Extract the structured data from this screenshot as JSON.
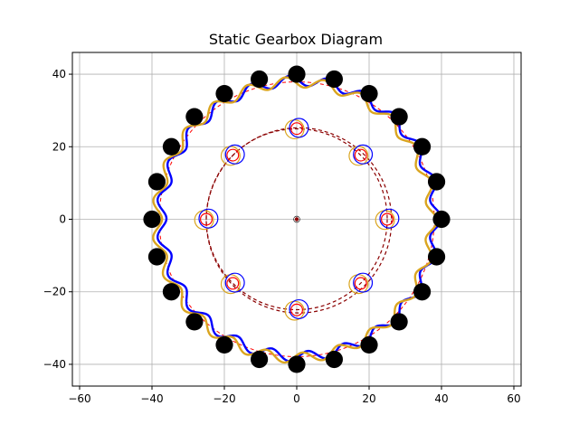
{
  "chart_data": {
    "type": "scatter",
    "title": "Static Gearbox Diagram",
    "xlabel": "",
    "ylabel": "",
    "xlim": [
      -62,
      62
    ],
    "ylim": [
      -46,
      46
    ],
    "grid": true,
    "legend": "none",
    "x_ticks": [
      -60,
      -40,
      -20,
      0,
      20,
      40,
      60
    ],
    "y_ticks": [
      -40,
      -20,
      0,
      20,
      40
    ],
    "x_tick_labels": [
      "−60",
      "−40",
      "−20",
      "0",
      "20",
      "40",
      "60"
    ],
    "y_tick_labels": [
      "−40",
      "−20",
      "0",
      "20",
      "40"
    ],
    "colors": {
      "blue": "#0000ff",
      "gold": "#daa520",
      "red": "#ff0000",
      "darkred": "#8b0000",
      "black": "#000000",
      "grid": "#b0b0b0"
    },
    "ring_rollers": {
      "count": 24,
      "radius_center": 40,
      "roller_radius": 2.4,
      "phase_deg": 0,
      "note_positions": "evenly spaced around ring",
      "x": [
        40,
        38.64,
        34.64,
        28.28,
        20,
        10.35,
        0,
        -10.35,
        -20,
        -28.28,
        -34.64,
        -38.64,
        -40,
        -38.64,
        -34.64,
        -28.28,
        -20,
        -10.35,
        0,
        10.35,
        20,
        28.28,
        34.64,
        38.64
      ],
      "y": [
        0,
        10.35,
        20,
        28.28,
        34.64,
        38.64,
        40,
        38.64,
        34.64,
        28.28,
        20,
        10.35,
        0,
        -10.35,
        -20,
        -28.28,
        -34.64,
        -38.64,
        -40,
        -38.64,
        -34.64,
        -28.28,
        -20,
        -10.35
      ]
    },
    "outer_pitch_circle": {
      "radius": 38,
      "color": "red",
      "style": "dashed"
    },
    "inner_pitch_circles": [
      {
        "radius": 25,
        "cx": 0,
        "cy": 0,
        "color": "darkred",
        "style": "dashed"
      },
      {
        "radius": 25.6,
        "cx": 0.6,
        "cy": -0.3,
        "color": "darkred",
        "style": "dashed"
      }
    ],
    "cycloid_discs": [
      {
        "name": "",
        "color": "blue",
        "base_radius": 38,
        "lobes": 23,
        "amplitude": 1.4,
        "offset": [
          0.6,
          0.2
        ],
        "phase_deg": 0
      },
      {
        "name": "",
        "color": "gold",
        "base_radius": 38,
        "lobes": 23,
        "amplitude": 1.4,
        "offset": [
          -0.6,
          -0.2
        ],
        "phase_deg": 7.8
      }
    ],
    "pins": {
      "count": 8,
      "radius_center": 25,
      "x": [
        25,
        17.68,
        0,
        -17.68,
        -25,
        -17.68,
        0,
        17.68
      ],
      "y": [
        0,
        17.68,
        25,
        17.68,
        0,
        -17.68,
        -25,
        -17.68
      ],
      "pin_radius": 1.6,
      "blue_hole_radius": 2.6,
      "gold_hole_radius": 2.6,
      "blue_offset": [
        0.6,
        0.2
      ],
      "gold_offset": [
        -0.6,
        -0.2
      ]
    },
    "center": {
      "x": 0,
      "y": 0
    }
  }
}
